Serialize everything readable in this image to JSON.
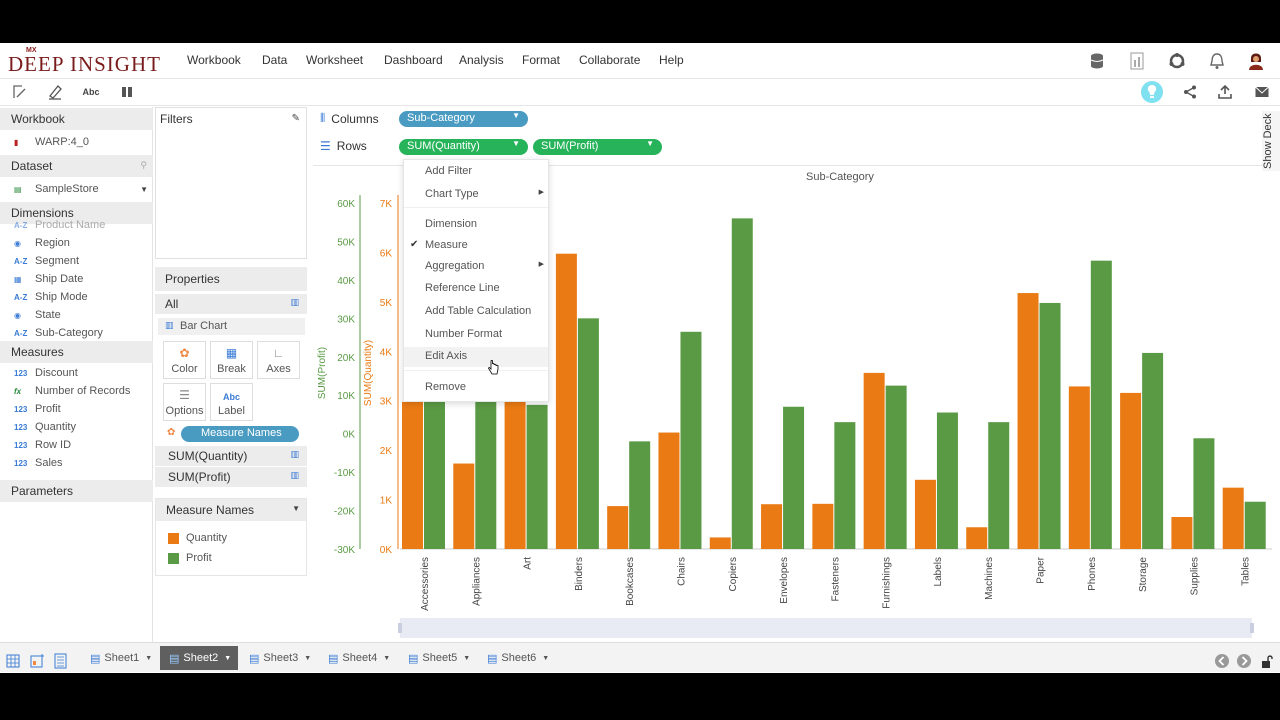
{
  "app": {
    "logo_mx": "MX",
    "logo_name": "DEEP INSIGHT"
  },
  "menu": [
    "Workbook",
    "Data",
    "Worksheet",
    "Dashboard",
    "Analysis",
    "Format",
    "Collaborate",
    "Help"
  ],
  "icons": {
    "top": [
      "database-icon",
      "report-icon",
      "refresh-icon",
      "bell-icon",
      "user-avatar-icon"
    ],
    "toolbar_left": [
      "select-icon",
      "format-icon",
      "text-icon",
      "pause-icon"
    ],
    "toolbar_right": [
      "lightbulb-icon",
      "share-icon",
      "upload-icon",
      "mail-icon"
    ]
  },
  "toolbar": {
    "abc": "Abc"
  },
  "left": {
    "workbook_title": "Workbook",
    "workbook_item": "WARP:4_0",
    "dataset_title": "Dataset",
    "dataset_value": "SampleStore",
    "dimensions_title": "Dimensions",
    "dimensions": [
      {
        "icon": "A-Z",
        "label": "Product Name"
      },
      {
        "icon": "◉",
        "label": "Region"
      },
      {
        "icon": "A-Z",
        "label": "Segment"
      },
      {
        "icon": "▦",
        "label": "Ship Date"
      },
      {
        "icon": "A-Z",
        "label": "Ship Mode"
      },
      {
        "icon": "◉",
        "label": "State"
      },
      {
        "icon": "A-Z",
        "label": "Sub-Category"
      }
    ],
    "measures_title": "Measures",
    "measures": [
      {
        "icon": "123",
        "label": "Discount"
      },
      {
        "icon": "fx",
        "label": "Number of Records"
      },
      {
        "icon": "123",
        "label": "Profit"
      },
      {
        "icon": "123",
        "label": "Quantity"
      },
      {
        "icon": "123",
        "label": "Row ID"
      },
      {
        "icon": "123",
        "label": "Sales"
      }
    ],
    "parameters_title": "Parameters"
  },
  "filters": {
    "title": "Filters"
  },
  "properties": {
    "title": "Properties",
    "all": "All",
    "chart_type": "Bar Chart",
    "buttons": {
      "color": "Color",
      "break": "Break",
      "axes": "Axes",
      "options": "Options",
      "label": "Label",
      "label_icon": "Abc"
    },
    "measure_names_pill": "Measure Names",
    "rows": [
      "SUM(Quantity)",
      "SUM(Profit)"
    ]
  },
  "legend": {
    "title": "Measure Names",
    "items": [
      {
        "label": "Quantity",
        "color": "#ea7a13"
      },
      {
        "label": "Profit",
        "color": "#5a9a45"
      }
    ]
  },
  "shelves": {
    "columns_label": "Columns",
    "rows_label": "Rows",
    "columns_pill": "Sub-Category",
    "rows_pills": [
      "SUM(Quantity)",
      "SUM(Profit)"
    ]
  },
  "context_menu": {
    "items": [
      "Add Filter",
      "Chart Type",
      "Dimension",
      "Measure",
      "Aggregation",
      "Reference Line",
      "Add Table Calculation",
      "Number Format",
      "Edit Axis",
      "Remove"
    ],
    "checked": "Measure",
    "highlighted": "Edit Axis"
  },
  "side": {
    "show_deck": "Show Deck"
  },
  "tabs": {
    "sheets": [
      "Sheet1",
      "Sheet2",
      "Sheet3",
      "Sheet4",
      "Sheet5",
      "Sheet6"
    ],
    "active": "Sheet2"
  },
  "chart_data": {
    "type": "bar",
    "title": "Sub-Category",
    "xlabel": "",
    "categories": [
      "Accessories",
      "Appliances",
      "Art",
      "Binders",
      "Bookcases",
      "Chairs",
      "Copiers",
      "Envelopes",
      "Fasteners",
      "Furnishings",
      "Labels",
      "Machines",
      "Paper",
      "Phones",
      "Storage",
      "Supplies",
      "Tables"
    ],
    "series": [
      {
        "name": "Quantity",
        "axis": "SUM(Quantity)",
        "color": "#ea7a13",
        "values": [
          2976,
          1729,
          3000,
          5974,
          868,
          2356,
          234,
          906,
          914,
          3563,
          1400,
          440,
          5178,
          3289,
          3158,
          647,
          1241
        ]
      },
      {
        "name": "Profit",
        "axis": "SUM(Profit)",
        "color": "#5a9a45",
        "values": [
          10000,
          10000,
          7500,
          30000,
          -2000,
          26500,
          56000,
          7000,
          3000,
          12500,
          5500,
          3000,
          34000,
          45000,
          21000,
          -1200,
          -17700
        ]
      }
    ],
    "axes": {
      "quantity": {
        "label": "SUM(Quantity)",
        "range": [
          0,
          7000
        ],
        "ticks": [
          "0K",
          "1K",
          "2K",
          "3K",
          "4K",
          "5K",
          "6K",
          "7K"
        ]
      },
      "profit": {
        "label": "SUM(Profit)",
        "range": [
          -30000,
          60000
        ],
        "ticks": [
          "-30K",
          "-20K",
          "-10K",
          "0K",
          "10K",
          "20K",
          "30K",
          "40K",
          "50K",
          "60K"
        ]
      }
    }
  }
}
